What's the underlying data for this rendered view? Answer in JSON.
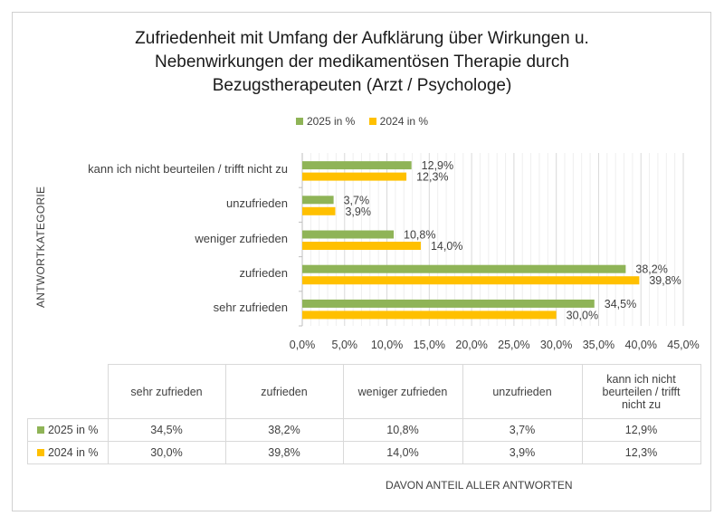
{
  "chart_data": {
    "type": "bar",
    "orientation": "horizontal",
    "title": "Zufriedenheit mit Umfang der Aufklärung über Wirkungen u. Nebenwirkungen der medikamentösen Therapie durch Bezugstherapeuten (Arzt / Psychologe)",
    "title_lines": [
      "Zufriedenheit mit Umfang der Aufklärung über Wirkungen u.",
      "Nebenwirkungen der medikamentösen Therapie durch",
      "Bezugstherapeuten (Arzt / Psychologe)"
    ],
    "ylabel": "ANTWORTKATEGORIE",
    "xlabel": "DAVON ANTEIL ALLER ANTWORTEN",
    "categories": [
      "sehr zufrieden",
      "zufrieden",
      "weniger zufrieden",
      "unzufrieden",
      "kann ich nicht beurteilen / trifft nicht zu"
    ],
    "table_headers": [
      "sehr zufrieden",
      "zufrieden",
      "weniger zufrieden",
      "unzufrieden",
      "kann ich nicht beurteilen / trifft nicht zu"
    ],
    "series": [
      {
        "name": "2025 in %",
        "color": "#8fb457",
        "values": [
          34.5,
          38.2,
          10.8,
          3.7,
          12.9
        ],
        "labels": [
          "34,5%",
          "38,2%",
          "10,8%",
          "3,7%",
          "12,9%"
        ]
      },
      {
        "name": "2024 in %",
        "color": "#ffc000",
        "values": [
          30.0,
          39.8,
          14.0,
          3.9,
          12.3
        ],
        "labels": [
          "30,0%",
          "39,8%",
          "14,0%",
          "3,9%",
          "12,3%"
        ]
      }
    ],
    "xlim": [
      0,
      45
    ],
    "xticks": [
      "0,0%",
      "5,0%",
      "10,0%",
      "15,0%",
      "20,0%",
      "25,0%",
      "30,0%",
      "35,0%",
      "40,0%",
      "45,0%"
    ],
    "legend": "top",
    "grid": true
  }
}
